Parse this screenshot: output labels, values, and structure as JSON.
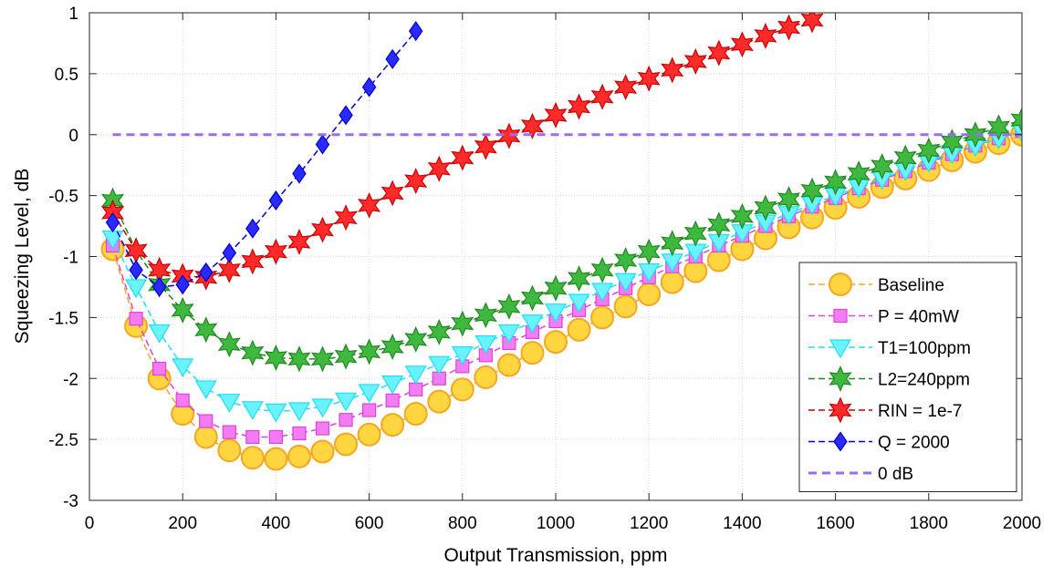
{
  "chart_data": {
    "type": "line",
    "xlabel": "Output Transmission, ppm",
    "ylabel": "Squeezing Level, dB",
    "xlim": [
      0,
      2000
    ],
    "ylim": [
      -3,
      1
    ],
    "xticks": [
      0,
      200,
      400,
      600,
      800,
      1000,
      1200,
      1400,
      1600,
      1800,
      2000
    ],
    "yticks": [
      -3,
      -2.5,
      -2,
      -1.5,
      -1,
      -0.5,
      0,
      0.5,
      1
    ],
    "xtick_labels": [
      "0",
      "200",
      "400",
      "600",
      "800",
      "1000",
      "1200",
      "1400",
      "1600",
      "1800",
      "2000"
    ],
    "ytick_labels": [
      "-3",
      "-2.5",
      "-2",
      "-1.5",
      "-1",
      "-0.5",
      "0",
      "0.5",
      "1"
    ],
    "grid": true,
    "legend_position": "bottom-right",
    "series": [
      {
        "name": "Baseline",
        "color": "#f5a623",
        "fill": "#ffd640",
        "marker": "circle",
        "line_style": "dashed",
        "x": [
          50,
          100,
          150,
          200,
          250,
          300,
          350,
          400,
          450,
          500,
          550,
          600,
          650,
          700,
          750,
          800,
          850,
          900,
          950,
          1000,
          1050,
          1100,
          1150,
          1200,
          1250,
          1300,
          1350,
          1400,
          1450,
          1500,
          1550,
          1600,
          1650,
          1700,
          1750,
          1800,
          1850,
          1900,
          1950,
          2000
        ],
        "y": [
          -0.94,
          -1.57,
          -2.0,
          -2.29,
          -2.48,
          -2.59,
          -2.65,
          -2.66,
          -2.64,
          -2.6,
          -2.54,
          -2.46,
          -2.38,
          -2.29,
          -2.19,
          -2.09,
          -1.99,
          -1.89,
          -1.79,
          -1.7,
          -1.6,
          -1.5,
          -1.41,
          -1.31,
          -1.21,
          -1.12,
          -1.03,
          -0.94,
          -0.85,
          -0.76,
          -0.68,
          -0.6,
          -0.51,
          -0.43,
          -0.36,
          -0.29,
          -0.21,
          -0.14,
          -0.07,
          0.0
        ]
      },
      {
        "name": "P = 40mW",
        "color": "#e040e0",
        "fill": "#f27cf2",
        "marker": "square",
        "line_style": "dashed",
        "x": [
          50,
          100,
          150,
          200,
          250,
          300,
          350,
          400,
          450,
          500,
          550,
          600,
          650,
          700,
          750,
          800,
          850,
          900,
          950,
          1000,
          1050,
          1100,
          1150,
          1200,
          1250,
          1300,
          1350,
          1400,
          1450,
          1500,
          1550,
          1600,
          1650,
          1700,
          1750,
          1800,
          1850,
          1900,
          1950,
          2000
        ],
        "y": [
          -0.91,
          -1.51,
          -1.92,
          -2.18,
          -2.35,
          -2.44,
          -2.48,
          -2.48,
          -2.45,
          -2.41,
          -2.34,
          -2.26,
          -2.18,
          -2.09,
          -2.0,
          -1.9,
          -1.81,
          -1.71,
          -1.62,
          -1.53,
          -1.44,
          -1.35,
          -1.26,
          -1.17,
          -1.08,
          -1.0,
          -0.91,
          -0.83,
          -0.75,
          -0.67,
          -0.59,
          -0.52,
          -0.44,
          -0.37,
          -0.3,
          -0.23,
          -0.16,
          -0.09,
          -0.03,
          0.03
        ]
      },
      {
        "name": "T1=100ppm",
        "color": "#20e0f0",
        "fill": "#6af2ff",
        "marker": "triangle-down",
        "line_style": "dashed",
        "x": [
          50,
          100,
          150,
          200,
          250,
          300,
          350,
          400,
          450,
          500,
          550,
          600,
          650,
          700,
          750,
          800,
          850,
          900,
          950,
          1000,
          1050,
          1100,
          1150,
          1200,
          1250,
          1300,
          1350,
          1400,
          1450,
          1500,
          1550,
          1600,
          1650,
          1700,
          1750,
          1800,
          1850,
          1900,
          1950,
          2000
        ],
        "y": [
          -0.85,
          -1.25,
          -1.62,
          -1.9,
          -2.08,
          -2.19,
          -2.25,
          -2.27,
          -2.26,
          -2.23,
          -2.18,
          -2.11,
          -2.04,
          -1.96,
          -1.88,
          -1.8,
          -1.71,
          -1.62,
          -1.54,
          -1.45,
          -1.37,
          -1.28,
          -1.2,
          -1.12,
          -1.04,
          -0.96,
          -0.88,
          -0.8,
          -0.72,
          -0.65,
          -0.57,
          -0.5,
          -0.43,
          -0.36,
          -0.29,
          -0.22,
          -0.15,
          -0.09,
          -0.03,
          0.03
        ]
      },
      {
        "name": "L2=240ppm",
        "color": "#1e8a1e",
        "fill": "#3fb83f",
        "marker": "star",
        "line_style": "dashed",
        "x": [
          50,
          100,
          150,
          200,
          250,
          300,
          350,
          400,
          450,
          500,
          550,
          600,
          650,
          700,
          750,
          800,
          850,
          900,
          950,
          1000,
          1050,
          1100,
          1150,
          1200,
          1250,
          1300,
          1350,
          1400,
          1450,
          1500,
          1550,
          1600,
          1650,
          1700,
          1750,
          1800,
          1850,
          1900,
          1950,
          2000
        ],
        "y": [
          -0.54,
          -0.95,
          -1.23,
          -1.44,
          -1.6,
          -1.72,
          -1.79,
          -1.83,
          -1.84,
          -1.84,
          -1.82,
          -1.78,
          -1.74,
          -1.68,
          -1.62,
          -1.55,
          -1.48,
          -1.41,
          -1.34,
          -1.26,
          -1.18,
          -1.11,
          -1.03,
          -0.96,
          -0.89,
          -0.81,
          -0.74,
          -0.67,
          -0.6,
          -0.53,
          -0.46,
          -0.39,
          -0.32,
          -0.26,
          -0.19,
          -0.13,
          -0.06,
          0.0,
          0.06,
          0.12
        ]
      },
      {
        "name": "RIN = 1e-7",
        "color": "#cc0000",
        "fill": "#ff2a2a",
        "marker": "star",
        "line_style": "dashed",
        "x": [
          50,
          100,
          150,
          200,
          250,
          300,
          350,
          400,
          450,
          500,
          550,
          600,
          650,
          700,
          750,
          800,
          850,
          900,
          950,
          1000,
          1050,
          1100,
          1150,
          1200,
          1250,
          1300,
          1350,
          1400,
          1450,
          1500,
          1550
        ],
        "y": [
          -0.64,
          -0.95,
          -1.11,
          -1.16,
          -1.17,
          -1.11,
          -1.04,
          -0.96,
          -0.88,
          -0.78,
          -0.68,
          -0.58,
          -0.48,
          -0.38,
          -0.28,
          -0.19,
          -0.1,
          -0.01,
          0.07,
          0.16,
          0.23,
          0.31,
          0.39,
          0.46,
          0.53,
          0.6,
          0.67,
          0.74,
          0.81,
          0.88,
          0.94
        ]
      },
      {
        "name": "Q = 2000",
        "color": "#0000cc",
        "fill": "#2a2aff",
        "marker": "diamond",
        "line_style": "dashed",
        "x": [
          50,
          100,
          150,
          200,
          250,
          300,
          350,
          400,
          450,
          500,
          550,
          600,
          650,
          700
        ],
        "y": [
          -0.72,
          -1.11,
          -1.25,
          -1.23,
          -1.13,
          -0.97,
          -0.77,
          -0.54,
          -0.32,
          -0.08,
          0.16,
          0.39,
          0.62,
          0.85
        ]
      },
      {
        "name": "0 dB",
        "color": "#9a6cf0",
        "marker": "none",
        "line_style": "dashed",
        "x": [
          50,
          2000
        ],
        "y": [
          0,
          0
        ]
      }
    ]
  }
}
